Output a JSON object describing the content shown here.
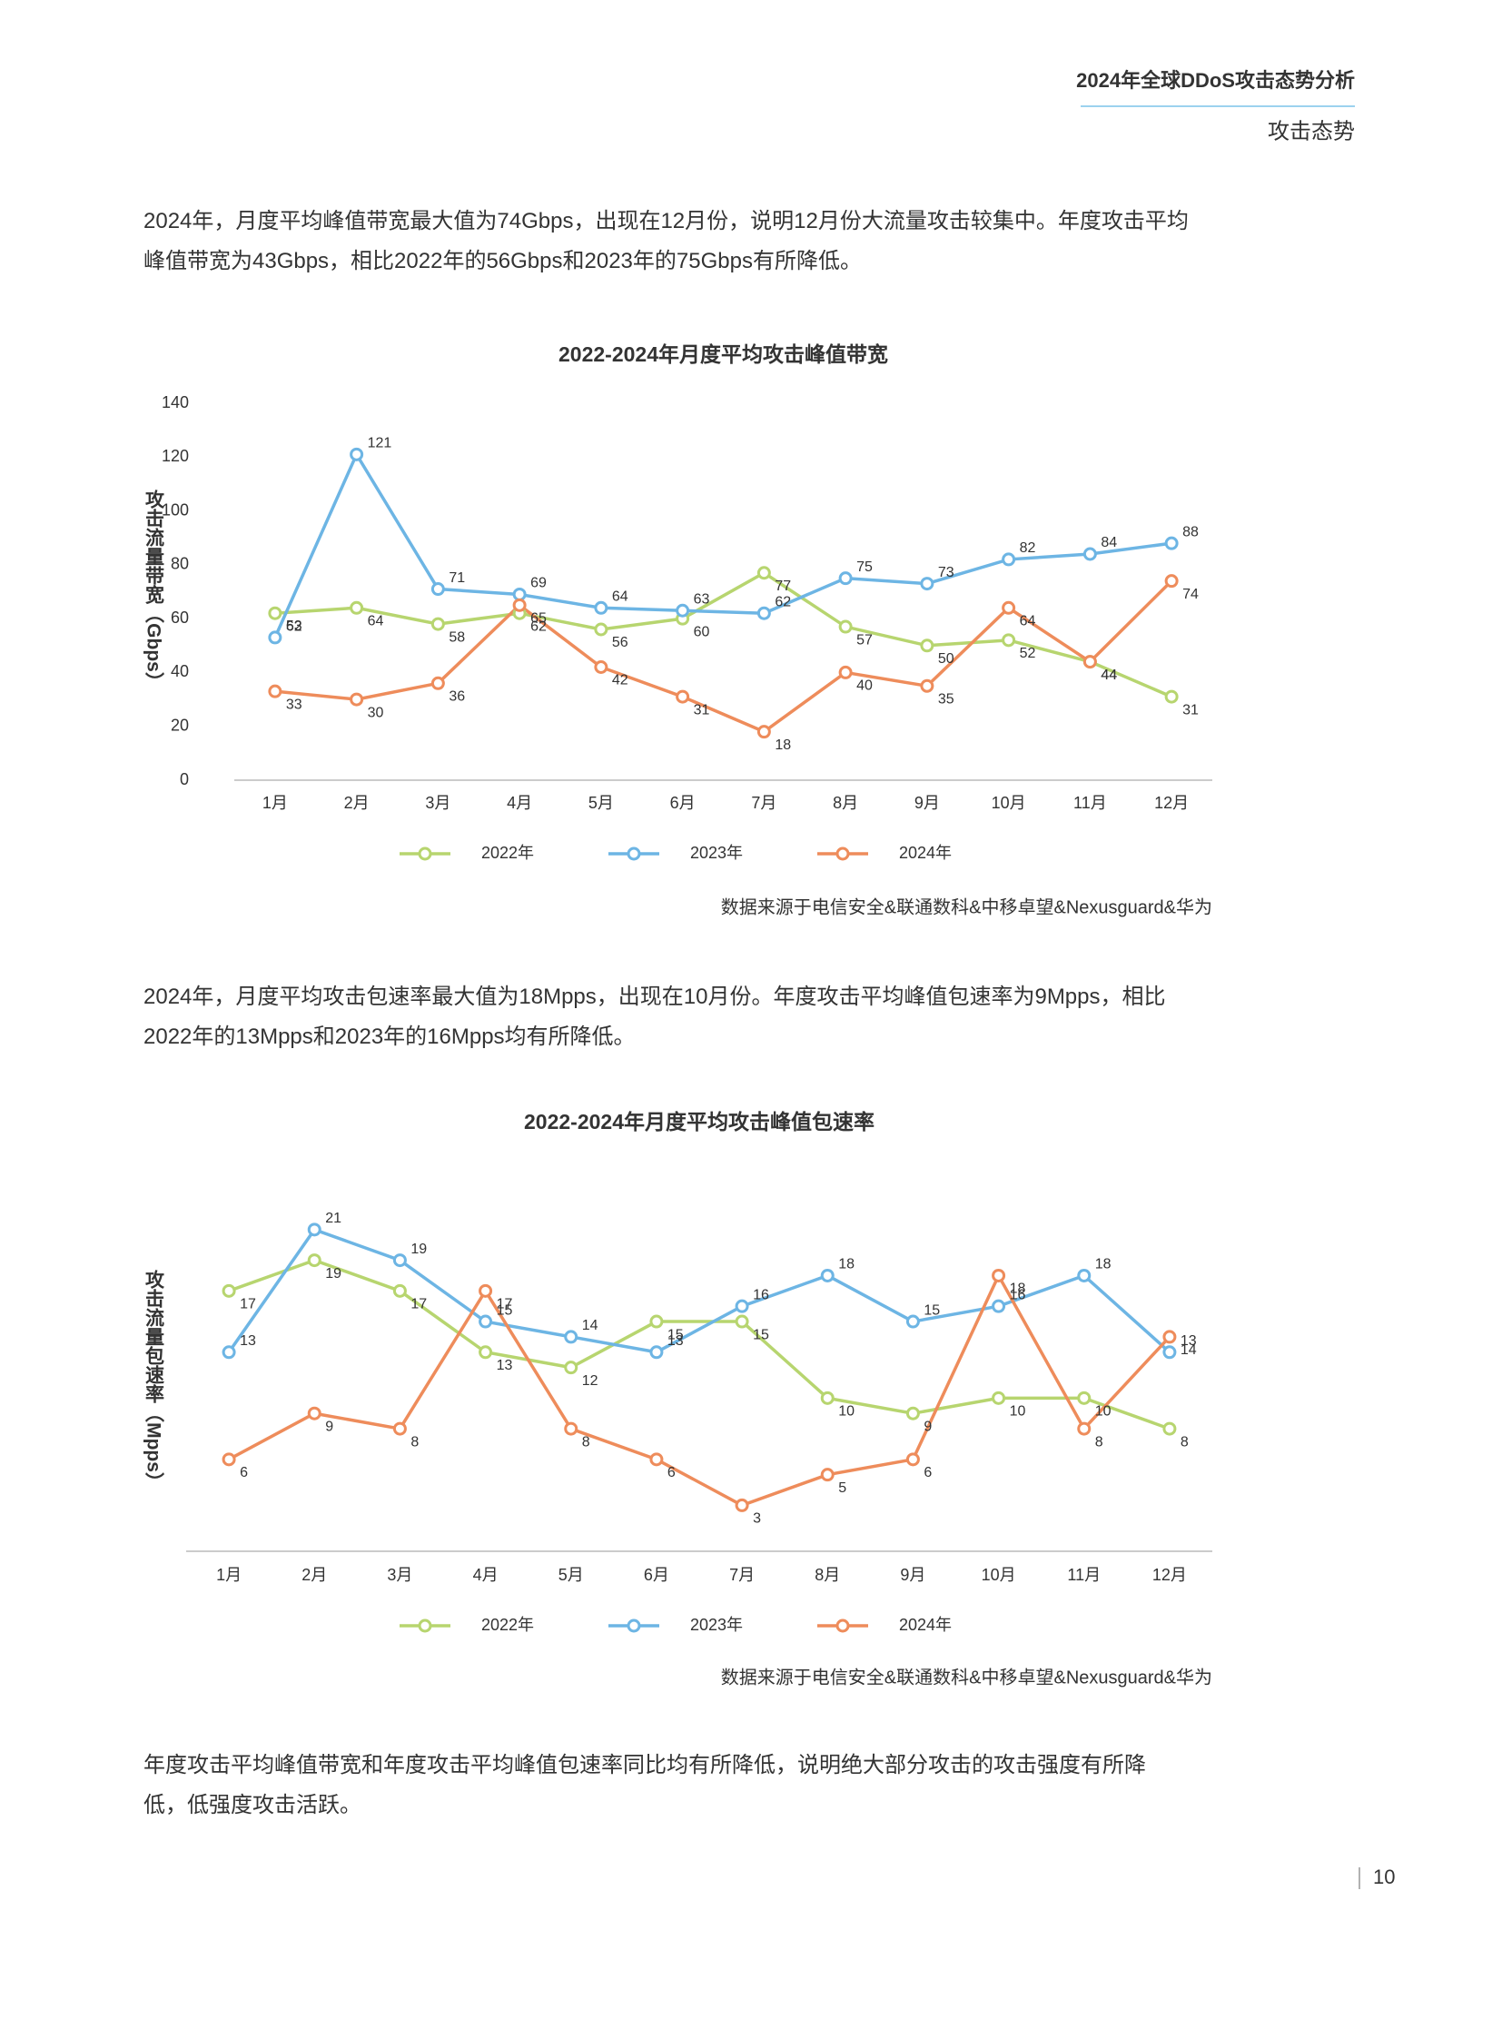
{
  "header": {
    "title": "2024年全球DDoS攻击态势分析",
    "section": "攻击态势"
  },
  "paragraphs": [
    [
      "2024年，月度平均峰值带宽最大值为74Gbps，出现在12月份，说明12月份大流量攻击较集中。年度攻击平均",
      "峰值带宽为43Gbps，相比2022年的56Gbps和2023年的75Gbps有所降低。"
    ],
    [
      "2024年，月度平均攻击包速率最大值为18Mpps，出现在10月份。年度攻击平均峰值包速率为9Mpps，相比",
      "2022年的13Mpps和2023年的16Mpps均有所降低。"
    ],
    [
      "年度攻击平均峰值带宽和年度攻击平均峰值包速率同比均有所降低，说明绝大部分攻击的攻击强度有所降",
      "低，低强度攻击活跃。"
    ]
  ],
  "chart_data": [
    {
      "type": "line",
      "title": "2022-2024年月度平均攻击峰值带宽",
      "y_label": "攻击流量带宽（Gbps）",
      "source": "数据来源于电信安全&联通数科&中移卓望&Nexusguard&华为",
      "categories": [
        "1月",
        "2月",
        "3月",
        "4月",
        "5月",
        "6月",
        "7月",
        "8月",
        "9月",
        "10月",
        "11月",
        "12月"
      ],
      "ylim": [
        0,
        140
      ],
      "yticks": [
        0,
        20,
        40,
        60,
        80,
        100,
        120,
        140
      ],
      "series": [
        {
          "name": "2022年",
          "color": "#b7d56f",
          "values": [
            62,
            64,
            58,
            62,
            56,
            60,
            77,
            57,
            50,
            52,
            44,
            31
          ]
        },
        {
          "name": "2023年",
          "color": "#6db5e4",
          "values": [
            53,
            121,
            71,
            69,
            64,
            63,
            62,
            75,
            73,
            82,
            84,
            88
          ]
        },
        {
          "name": "2024年",
          "color": "#ee8c5b",
          "values": [
            33,
            30,
            36,
            65,
            42,
            31,
            18,
            40,
            35,
            64,
            44,
            74
          ]
        }
      ]
    },
    {
      "type": "line",
      "title": "2022-2024年月度平均攻击峰值包速率",
      "y_label": "攻击流量包速率（Mpps）",
      "source": "数据来源于电信安全&联通数科&中移卓望&Nexusguard&华为",
      "categories": [
        "1月",
        "2月",
        "3月",
        "4月",
        "5月",
        "6月",
        "7月",
        "8月",
        "9月",
        "10月",
        "11月",
        "12月"
      ],
      "ylim": [
        0,
        22
      ],
      "series": [
        {
          "name": "2022年",
          "color": "#b7d56f",
          "values": [
            17,
            19,
            17,
            13,
            12,
            15,
            15,
            10,
            9,
            10,
            10,
            8
          ]
        },
        {
          "name": "2023年",
          "color": "#6db5e4",
          "values": [
            13,
            21,
            19,
            15,
            14,
            13,
            16,
            18,
            15,
            16,
            18,
            13
          ]
        },
        {
          "name": "2024年",
          "color": "#ee8c5b",
          "values": [
            6,
            9,
            8,
            17,
            8,
            6,
            3,
            5,
            6,
            18,
            8,
            14
          ]
        }
      ]
    }
  ],
  "page_number": "10"
}
